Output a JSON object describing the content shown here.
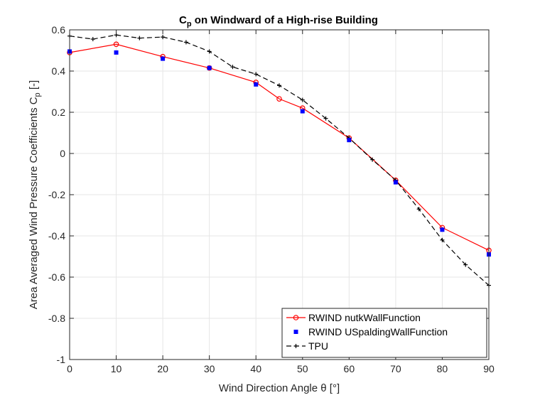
{
  "chart_data": {
    "type": "line",
    "title_main": "C",
    "title_sub": "p",
    "title_rest": " on Windward of a High-rise Building",
    "xlabel": "Wind Direction Angle θ [°]",
    "ylabel_main": "Area Averaged Wind Pressure Coefficients C",
    "ylabel_sub": "p",
    "ylabel_rest": " [-]",
    "xlim": [
      0,
      90
    ],
    "ylim": [
      -1,
      0.6
    ],
    "xticks": [
      0,
      10,
      20,
      30,
      40,
      50,
      60,
      70,
      80,
      90
    ],
    "xtick_labels": [
      "0",
      "10",
      "20",
      "30",
      "40",
      "50",
      "60",
      "70",
      "80",
      "90"
    ],
    "yticks": [
      -1,
      -0.8,
      -0.6,
      -0.4,
      -0.2,
      0,
      0.2,
      0.4,
      0.6
    ],
    "ytick_labels": [
      "-1",
      "-0.8",
      "-0.6",
      "-0.4",
      "-0.2",
      "0",
      "0.2",
      "0.4",
      "0.6"
    ],
    "grid": true,
    "legend_position": "bottom-right",
    "series": [
      {
        "name": "RWIND nutkWallFunction",
        "color": "#ff0000",
        "line": "solid",
        "marker": "circle",
        "x": [
          0,
          10,
          20,
          30,
          40,
          45,
          50,
          60,
          70,
          80,
          90
        ],
        "y": [
          0.49,
          0.53,
          0.47,
          0.415,
          0.345,
          0.265,
          0.22,
          0.075,
          -0.13,
          -0.36,
          -0.47
        ]
      },
      {
        "name": "RWIND USpaldingWallFunction",
        "color": "#0000ff",
        "line": "none",
        "marker": "square",
        "x": [
          0,
          10,
          20,
          30,
          40,
          50,
          60,
          70,
          80,
          90
        ],
        "y": [
          0.495,
          0.49,
          0.46,
          0.415,
          0.335,
          0.205,
          0.065,
          -0.14,
          -0.37,
          -0.49
        ]
      },
      {
        "name": "TPU",
        "color": "#000000",
        "line": "dashed",
        "marker": "plus",
        "x": [
          0,
          5,
          10,
          15,
          20,
          25,
          30,
          35,
          40,
          45,
          50,
          55,
          60,
          65,
          70,
          75,
          80,
          85,
          90
        ],
        "y": [
          0.57,
          0.555,
          0.575,
          0.56,
          0.565,
          0.54,
          0.495,
          0.42,
          0.385,
          0.33,
          0.26,
          0.17,
          0.075,
          -0.03,
          -0.13,
          -0.27,
          -0.42,
          -0.54,
          -0.64
        ]
      }
    ]
  }
}
